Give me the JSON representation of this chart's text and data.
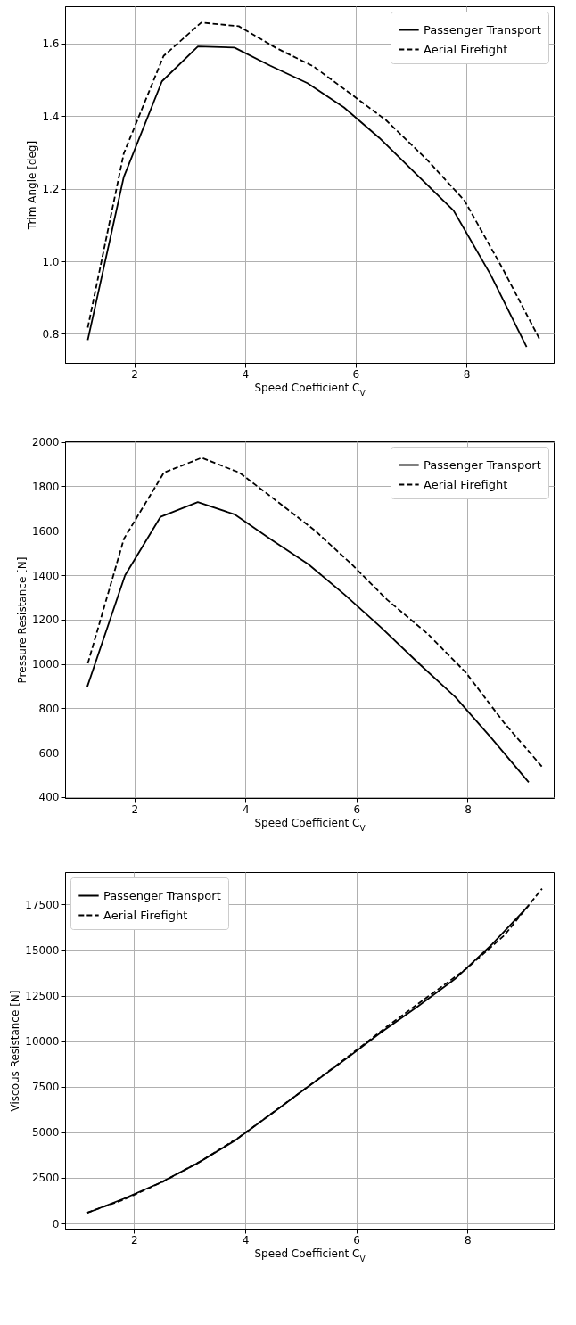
{
  "chart_data": [
    {
      "type": "line",
      "xlabel": "Speed Coefficient C$_{V}$",
      "ylabel": "Trim Angle [deg]",
      "xlim": [
        0.75,
        9.58
      ],
      "ylim": [
        0.72,
        1.703
      ],
      "xticks": [
        2,
        4,
        6,
        8
      ],
      "yticks": [
        0.8,
        {
          "value": 1,
          "label": "1.0"
        },
        1.2,
        1.4,
        1.6
      ],
      "grid": true,
      "legend": "top right",
      "series": [
        {
          "name": "Passenger Transport",
          "color": "#000000",
          "line_style": "solid",
          "x": [
            1.16,
            1.81,
            2.5,
            3.15,
            3.81,
            4.46,
            5.13,
            5.79,
            6.43,
            7.11,
            7.77,
            8.44,
            9.09
          ],
          "values": [
            0.783,
            1.232,
            1.496,
            1.592,
            1.589,
            1.539,
            1.491,
            1.424,
            1.34,
            1.238,
            1.14,
            0.963,
            0.764
          ]
        },
        {
          "name": "Aerial Firefight",
          "color": "#000000",
          "line_style": "dashed",
          "x": [
            1.16,
            1.81,
            2.53,
            3.21,
            3.89,
            4.55,
            5.24,
            5.89,
            6.55,
            7.29,
            7.97,
            8.66,
            9.34
          ],
          "values": [
            0.817,
            1.297,
            1.566,
            1.658,
            1.648,
            1.589,
            1.537,
            1.464,
            1.389,
            1.28,
            1.167,
            0.979,
            0.781
          ]
        }
      ]
    },
    {
      "type": "line",
      "xlabel": "Speed Coefficient C$_{V}$",
      "ylabel": "Pressure Resistance [N]",
      "xlim": [
        0.75,
        9.55
      ],
      "ylim": [
        395,
        2003
      ],
      "xticks": [
        2,
        4,
        6,
        8
      ],
      "yticks": [
        400,
        600,
        800,
        1000,
        1200,
        1400,
        1600,
        1800,
        2000
      ],
      "grid": true,
      "legend": "top right",
      "series": [
        {
          "name": "Passenger Transport",
          "color": "#000000",
          "line_style": "solid",
          "x": [
            1.15,
            1.83,
            2.47,
            3.14,
            3.8,
            4.47,
            5.13,
            5.78,
            6.44,
            7.11,
            7.78,
            8.44,
            9.1
          ],
          "values": [
            897,
            1399,
            1663,
            1729,
            1674,
            1559,
            1449,
            1313,
            1164,
            1004,
            850,
            662,
            466
          ]
        },
        {
          "name": "Aerial Firefight",
          "color": "#000000",
          "line_style": "dashed",
          "x": [
            1.16,
            1.81,
            2.53,
            3.21,
            3.89,
            4.55,
            5.24,
            5.89,
            6.55,
            7.29,
            7.97,
            8.66,
            9.34
          ],
          "values": [
            1002,
            1564,
            1862,
            1929,
            1862,
            1736,
            1603,
            1454,
            1289,
            1133,
            960,
            733,
            536
          ]
        }
      ]
    },
    {
      "type": "line",
      "xlabel": "Speed Coefficient C$_{V}$",
      "ylabel": "Viscous Resistance [N]",
      "xlim": [
        0.76,
        9.55
      ],
      "ylim": [
        -290,
        19280
      ],
      "xticks": [
        2,
        4,
        6,
        8
      ],
      "yticks": [
        0,
        2500,
        5000,
        7500,
        10000,
        12500,
        15000,
        17500
      ],
      "grid": true,
      "legend": "top left",
      "series": [
        {
          "name": "Passenger Transport",
          "color": "#000000",
          "line_style": "solid",
          "x": [
            1.16,
            1.81,
            2.47,
            3.14,
            3.8,
            4.47,
            5.13,
            5.78,
            6.44,
            7.11,
            7.78,
            8.44,
            9.1
          ],
          "values": [
            580,
            1350,
            2230,
            3300,
            4520,
            6010,
            7500,
            8950,
            10470,
            11920,
            13430,
            15310,
            17440
          ]
        },
        {
          "name": "Aerial Firefight",
          "color": "#000000",
          "line_style": "dashed",
          "x": [
            1.16,
            1.81,
            2.53,
            3.21,
            3.89,
            4.55,
            5.24,
            5.89,
            6.55,
            7.29,
            7.97,
            8.66,
            9.34
          ],
          "values": [
            600,
            1300,
            2300,
            3430,
            4730,
            6200,
            7750,
            9250,
            10800,
            12450,
            13950,
            15800,
            18370
          ]
        }
      ]
    }
  ]
}
